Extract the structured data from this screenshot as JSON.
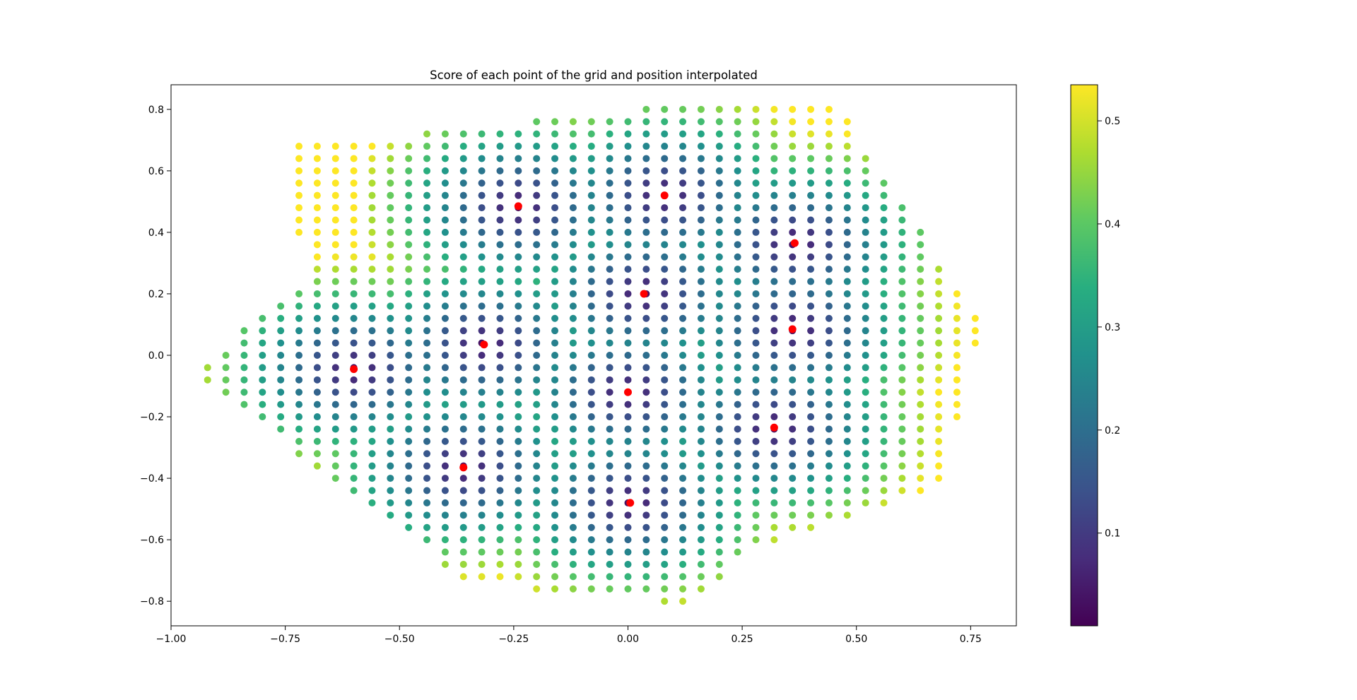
{
  "chart_data": {
    "type": "scatter",
    "title": "Score of each point of the grid and position interpolated",
    "xlabel": "",
    "ylabel": "",
    "xlim": [
      -1.0,
      0.85
    ],
    "ylim": [
      -0.88,
      0.88
    ],
    "xticks": [
      -1.0,
      -0.75,
      -0.5,
      -0.25,
      0.0,
      0.25,
      0.5,
      0.75
    ],
    "xtick_labels": [
      "−1.00",
      "−0.75",
      "−0.50",
      "−0.25",
      "0.00",
      "0.25",
      "0.50",
      "0.75"
    ],
    "yticks": [
      -0.8,
      -0.6,
      -0.4,
      -0.2,
      0.0,
      0.2,
      0.4,
      0.6,
      0.8
    ],
    "ytick_labels": [
      "−0.8",
      "−0.6",
      "−0.4",
      "−0.2",
      "0.0",
      "0.2",
      "0.4",
      "0.6",
      "0.8"
    ],
    "grid": false,
    "colormap": "viridis",
    "colorbar": {
      "range": [
        0.01,
        0.535
      ],
      "ticks": [
        0.1,
        0.2,
        0.3,
        0.4,
        0.5
      ],
      "tick_labels": [
        "0.1",
        "0.2",
        "0.3",
        "0.4",
        "0.5"
      ]
    },
    "grid_points": {
      "step": 0.04,
      "rows": [
        {
          "y": 0.8,
          "x_min": 0.04,
          "x_max": 0.44
        },
        {
          "y": 0.76,
          "x_min": -0.2,
          "x_max": 0.48
        },
        {
          "y": 0.72,
          "x_min": -0.44,
          "x_max": 0.48
        },
        {
          "y": 0.68,
          "x_min": -0.72,
          "x_max": 0.48
        },
        {
          "y": 0.64,
          "x_min": -0.72,
          "x_max": 0.52
        },
        {
          "y": 0.6,
          "x_min": -0.72,
          "x_max": 0.52
        },
        {
          "y": 0.56,
          "x_min": -0.72,
          "x_max": 0.56
        },
        {
          "y": 0.52,
          "x_min": -0.72,
          "x_max": 0.56
        },
        {
          "y": 0.48,
          "x_min": -0.72,
          "x_max": 0.6
        },
        {
          "y": 0.44,
          "x_min": -0.72,
          "x_max": 0.6
        },
        {
          "y": 0.4,
          "x_min": -0.72,
          "x_max": 0.64
        },
        {
          "y": 0.36,
          "x_min": -0.68,
          "x_max": 0.64
        },
        {
          "y": 0.32,
          "x_min": -0.68,
          "x_max": 0.64
        },
        {
          "y": 0.28,
          "x_min": -0.68,
          "x_max": 0.68
        },
        {
          "y": 0.24,
          "x_min": -0.68,
          "x_max": 0.68
        },
        {
          "y": 0.2,
          "x_min": -0.72,
          "x_max": 0.72
        },
        {
          "y": 0.16,
          "x_min": -0.76,
          "x_max": 0.72
        },
        {
          "y": 0.12,
          "x_min": -0.8,
          "x_max": 0.76
        },
        {
          "y": 0.08,
          "x_min": -0.84,
          "x_max": 0.76
        },
        {
          "y": 0.04,
          "x_min": -0.84,
          "x_max": 0.76
        },
        {
          "y": 0.0,
          "x_min": -0.88,
          "x_max": 0.72
        },
        {
          "y": -0.04,
          "x_min": -0.92,
          "x_max": 0.72
        },
        {
          "y": -0.08,
          "x_min": -0.92,
          "x_max": 0.72
        },
        {
          "y": -0.12,
          "x_min": -0.88,
          "x_max": 0.72
        },
        {
          "y": -0.16,
          "x_min": -0.84,
          "x_max": 0.72
        },
        {
          "y": -0.2,
          "x_min": -0.8,
          "x_max": 0.72
        },
        {
          "y": -0.24,
          "x_min": -0.76,
          "x_max": 0.68
        },
        {
          "y": -0.28,
          "x_min": -0.72,
          "x_max": 0.68
        },
        {
          "y": -0.32,
          "x_min": -0.72,
          "x_max": 0.68
        },
        {
          "y": -0.36,
          "x_min": -0.68,
          "x_max": 0.68
        },
        {
          "y": -0.4,
          "x_min": -0.64,
          "x_max": 0.68
        },
        {
          "y": -0.44,
          "x_min": -0.6,
          "x_max": 0.64
        },
        {
          "y": -0.48,
          "x_min": -0.56,
          "x_max": 0.56
        },
        {
          "y": -0.52,
          "x_min": -0.52,
          "x_max": 0.48
        },
        {
          "y": -0.56,
          "x_min": -0.48,
          "x_max": 0.4
        },
        {
          "y": -0.6,
          "x_min": -0.44,
          "x_max": 0.32
        },
        {
          "y": -0.64,
          "x_min": -0.4,
          "x_max": 0.24
        },
        {
          "y": -0.68,
          "x_min": -0.4,
          "x_max": 0.2
        },
        {
          "y": -0.72,
          "x_min": -0.36,
          "x_max": 0.2
        },
        {
          "y": -0.76,
          "x_min": -0.2,
          "x_max": 0.16
        },
        {
          "y": -0.8,
          "x_min": 0.08,
          "x_max": 0.12
        }
      ]
    },
    "interpolated_positions": {
      "color": "#ff0000",
      "points": [
        {
          "x": -0.24,
          "y": 0.485
        },
        {
          "x": 0.08,
          "y": 0.52
        },
        {
          "x": 0.365,
          "y": 0.365
        },
        {
          "x": 0.035,
          "y": 0.2
        },
        {
          "x": 0.36,
          "y": 0.085
        },
        {
          "x": -0.315,
          "y": 0.035
        },
        {
          "x": -0.6,
          "y": -0.045
        },
        {
          "x": 0.0,
          "y": -0.12
        },
        {
          "x": 0.32,
          "y": -0.235
        },
        {
          "x": -0.36,
          "y": -0.365
        },
        {
          "x": 0.005,
          "y": -0.48
        }
      ]
    }
  }
}
